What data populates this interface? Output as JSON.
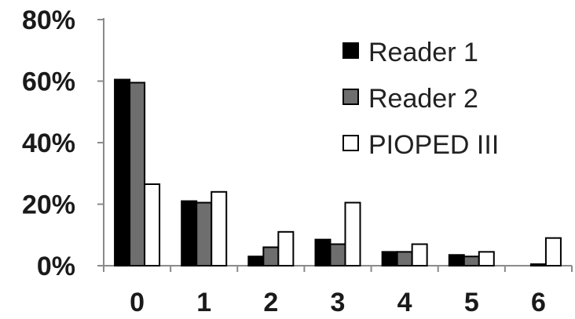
{
  "chart_data": {
    "type": "bar",
    "categories": [
      "0",
      "1",
      "2",
      "3",
      "4",
      "5",
      "6"
    ],
    "series": [
      {
        "name": "Reader 1",
        "color": "#000000",
        "values": [
          60.5,
          21,
          3,
          8.5,
          4.5,
          3.5,
          0
        ]
      },
      {
        "name": "Reader 2",
        "color": "#6e6e6e",
        "values": [
          59.5,
          20.5,
          6,
          7,
          4.5,
          3,
          0.5
        ]
      },
      {
        "name": "PIOPED III",
        "color": "#ffffff",
        "values": [
          26.5,
          24,
          11,
          20.5,
          7,
          4.5,
          9
        ]
      }
    ],
    "ylim": [
      0,
      80
    ],
    "yticks": [
      0,
      20,
      40,
      60,
      80
    ],
    "ytick_labels": [
      "0%",
      "20%",
      "40%",
      "60%",
      "80%"
    ],
    "grid": false,
    "legend_position": "top-right"
  }
}
